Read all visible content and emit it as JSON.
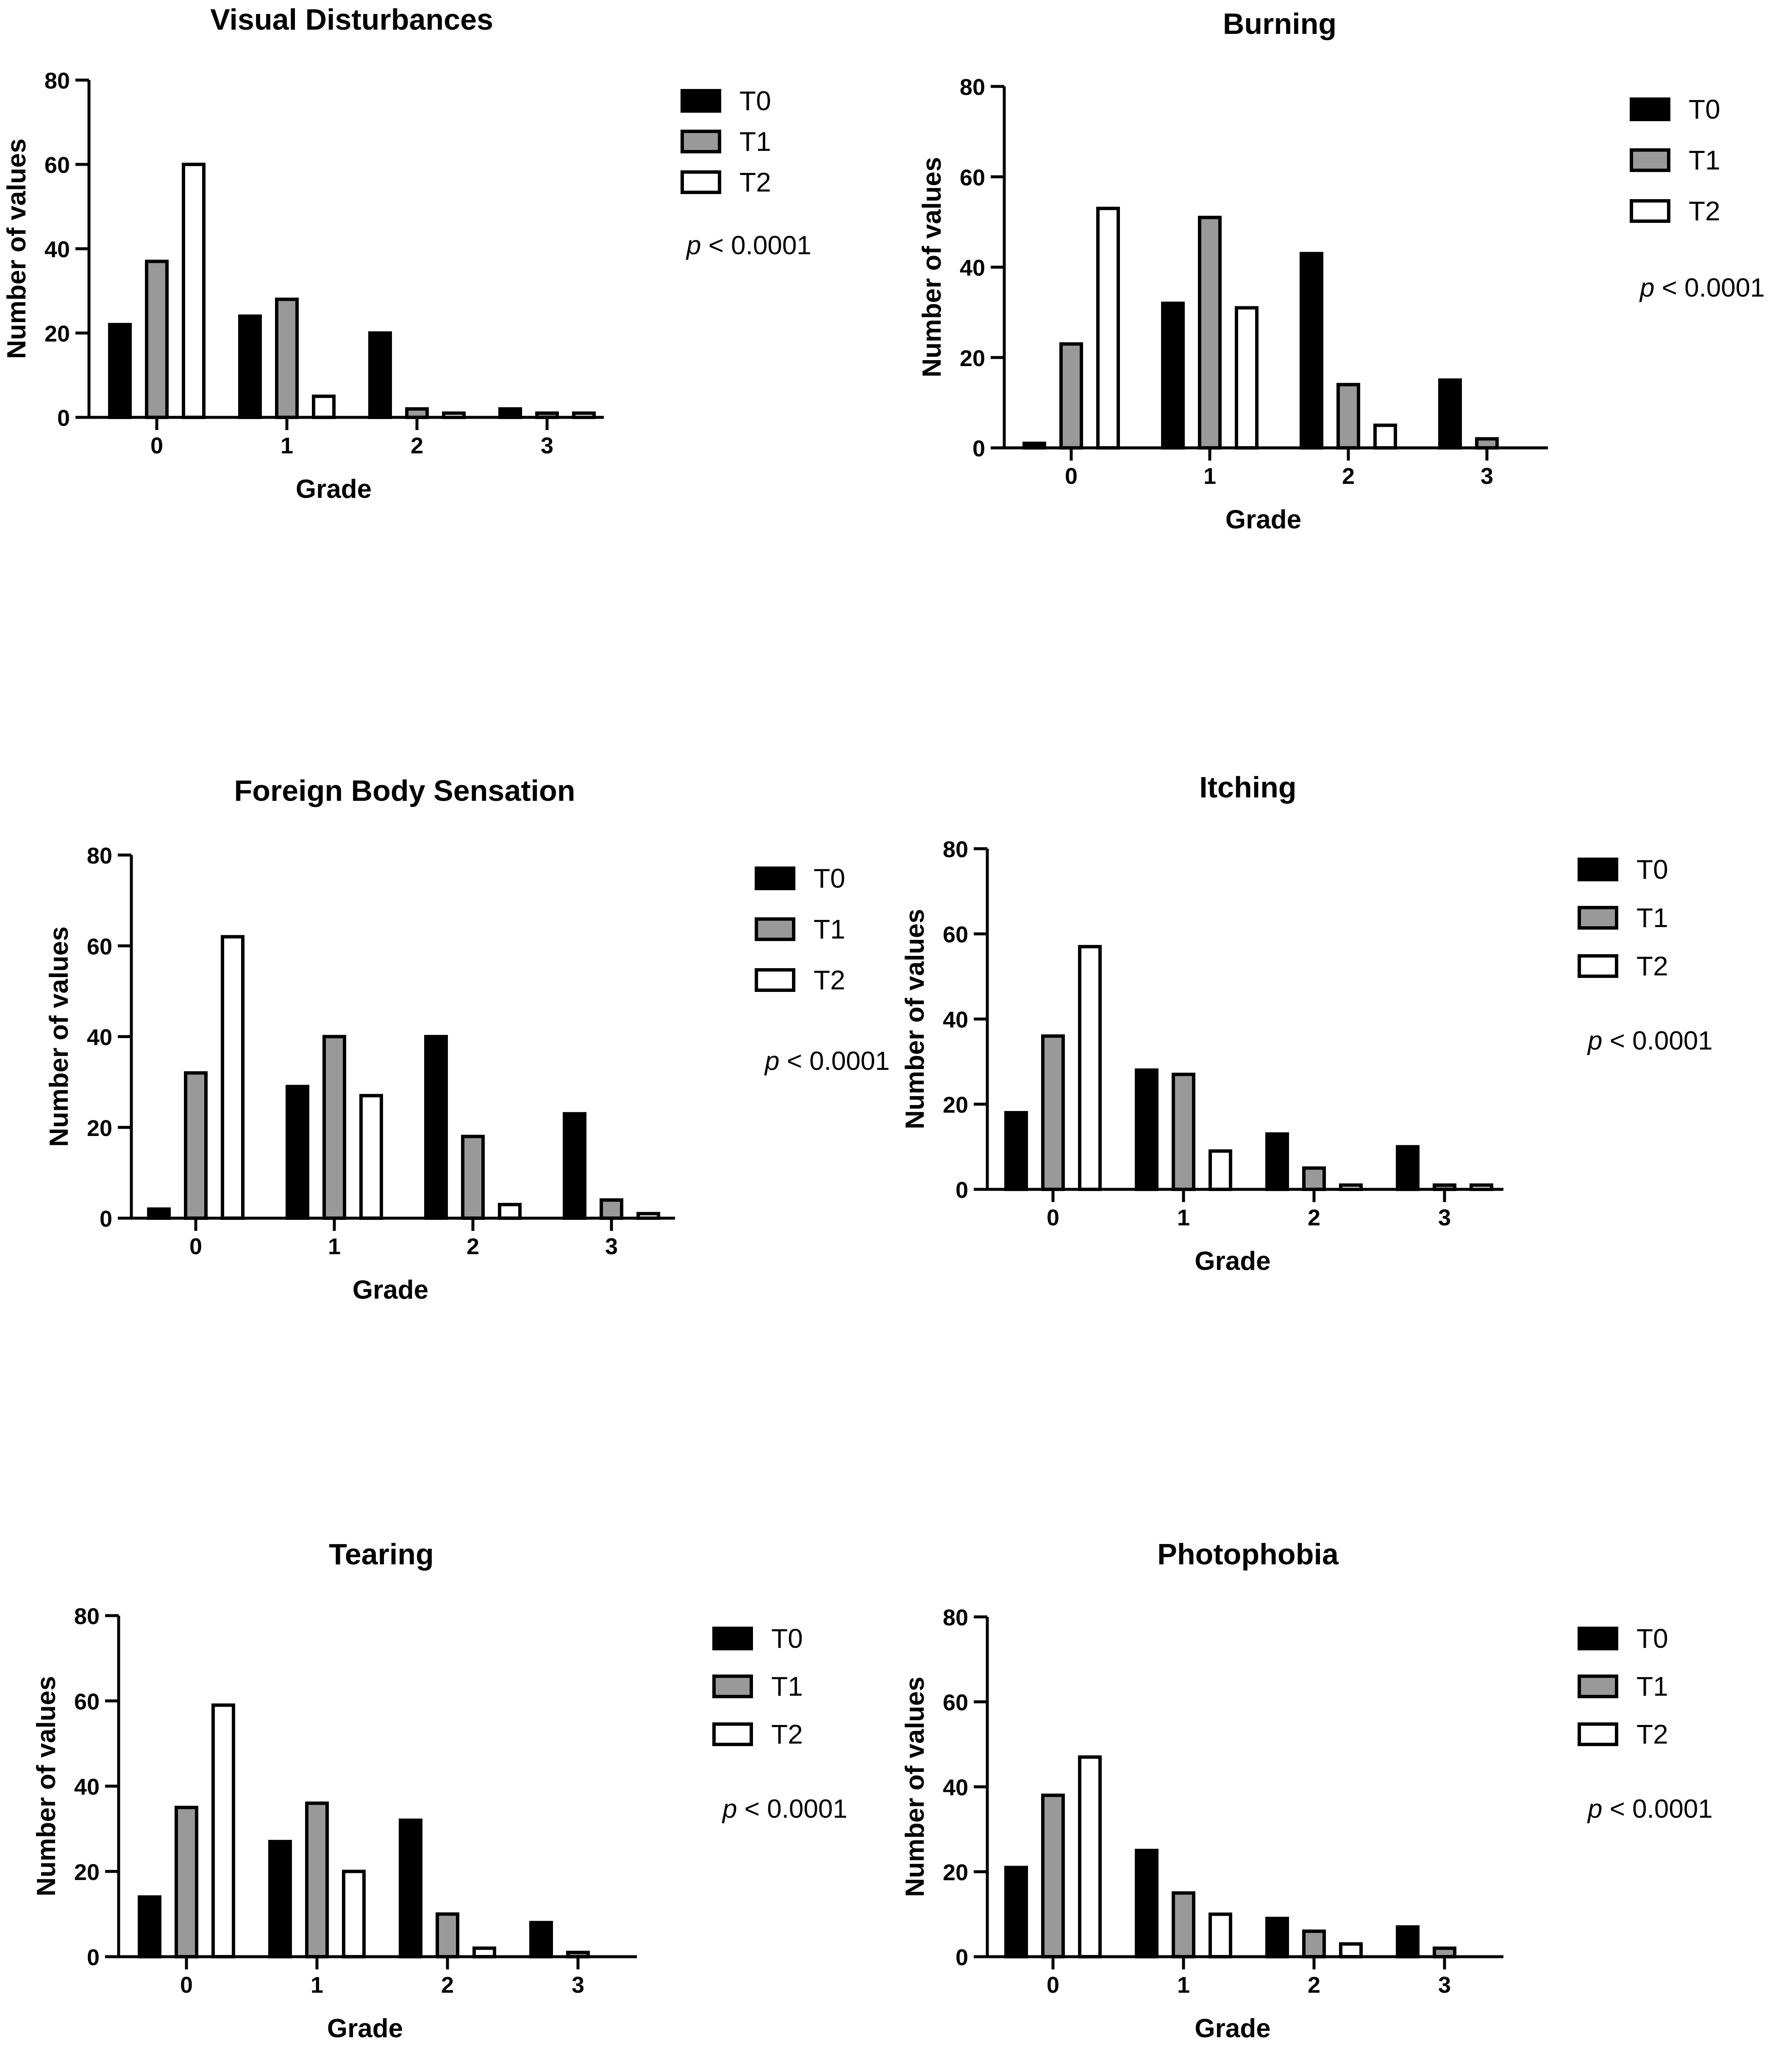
{
  "chart_data": [
    {
      "type": "bar",
      "title": "Visual Disturbances",
      "xlabel": "Grade",
      "ylabel": "Number of values",
      "categories": [
        "0",
        "1",
        "2",
        "3"
      ],
      "ylim": [
        0,
        80
      ],
      "yticks": [
        "0",
        "20",
        "40",
        "60",
        "80"
      ],
      "series": [
        {
          "name": "T0",
          "values": [
            22,
            24,
            20,
            2
          ]
        },
        {
          "name": "T1",
          "values": [
            37,
            28,
            2,
            1
          ]
        },
        {
          "name": "T2",
          "values": [
            60,
            5,
            1,
            1
          ]
        }
      ],
      "annotation": {
        "p": "p",
        "rest": " < 0.0001"
      }
    },
    {
      "type": "bar",
      "title": "Burning",
      "xlabel": "Grade",
      "ylabel": "Number of values",
      "categories": [
        "0",
        "1",
        "2",
        "3"
      ],
      "ylim": [
        0,
        80
      ],
      "yticks": [
        "0",
        "20",
        "40",
        "60",
        "80"
      ],
      "series": [
        {
          "name": "T0",
          "values": [
            1,
            32,
            43,
            15
          ]
        },
        {
          "name": "T1",
          "values": [
            23,
            51,
            14,
            2
          ]
        },
        {
          "name": "T2",
          "values": [
            53,
            31,
            5,
            0
          ]
        }
      ],
      "annotation": {
        "p": "p",
        "rest": " < 0.0001"
      }
    },
    {
      "type": "bar",
      "title": "Foreign Body Sensation",
      "xlabel": "Grade",
      "ylabel": "Number of values",
      "categories": [
        "0",
        "1",
        "2",
        "3"
      ],
      "ylim": [
        0,
        80
      ],
      "yticks": [
        "0",
        "20",
        "40",
        "60",
        "80"
      ],
      "series": [
        {
          "name": "T0",
          "values": [
            2,
            29,
            40,
            23
          ]
        },
        {
          "name": "T1",
          "values": [
            32,
            40,
            18,
            4
          ]
        },
        {
          "name": "T2",
          "values": [
            62,
            27,
            3,
            1
          ]
        }
      ],
      "annotation": {
        "p": "p",
        "rest": " < 0.0001"
      }
    },
    {
      "type": "bar",
      "title": "Itching",
      "xlabel": "Grade",
      "ylabel": "Number of values",
      "categories": [
        "0",
        "1",
        "2",
        "3"
      ],
      "ylim": [
        0,
        80
      ],
      "yticks": [
        "0",
        "20",
        "40",
        "60",
        "80"
      ],
      "series": [
        {
          "name": "T0",
          "values": [
            18,
            28,
            13,
            10
          ]
        },
        {
          "name": "T1",
          "values": [
            36,
            27,
            5,
            1
          ]
        },
        {
          "name": "T2",
          "values": [
            57,
            9,
            1,
            1
          ]
        }
      ],
      "annotation": {
        "p": "p",
        "rest": " < 0.0001"
      }
    },
    {
      "type": "bar",
      "title": "Tearing",
      "xlabel": "Grade",
      "ylabel": "Number of values",
      "categories": [
        "0",
        "1",
        "2",
        "3"
      ],
      "ylim": [
        0,
        80
      ],
      "yticks": [
        "0",
        "20",
        "40",
        "60",
        "80"
      ],
      "series": [
        {
          "name": "T0",
          "values": [
            14,
            27,
            32,
            8
          ]
        },
        {
          "name": "T1",
          "values": [
            35,
            36,
            10,
            1
          ]
        },
        {
          "name": "T2",
          "values": [
            59,
            20,
            2,
            0
          ]
        }
      ],
      "annotation": {
        "p": "p",
        "rest": " < 0.0001"
      }
    },
    {
      "type": "bar",
      "title": "Photophobia",
      "xlabel": "Grade",
      "ylabel": "Number of values",
      "categories": [
        "0",
        "1",
        "2",
        "3"
      ],
      "ylim": [
        0,
        80
      ],
      "yticks": [
        "0",
        "20",
        "40",
        "60",
        "80"
      ],
      "series": [
        {
          "name": "T0",
          "values": [
            21,
            25,
            9,
            7
          ]
        },
        {
          "name": "T1",
          "values": [
            38,
            15,
            6,
            2
          ]
        },
        {
          "name": "T2",
          "values": [
            47,
            10,
            3,
            0
          ]
        }
      ],
      "annotation": {
        "p": "p",
        "rest": " < 0.0001"
      }
    }
  ],
  "series_colors": {
    "T0": "#000000",
    "T1": "#999999",
    "T2": "#ffffff"
  }
}
